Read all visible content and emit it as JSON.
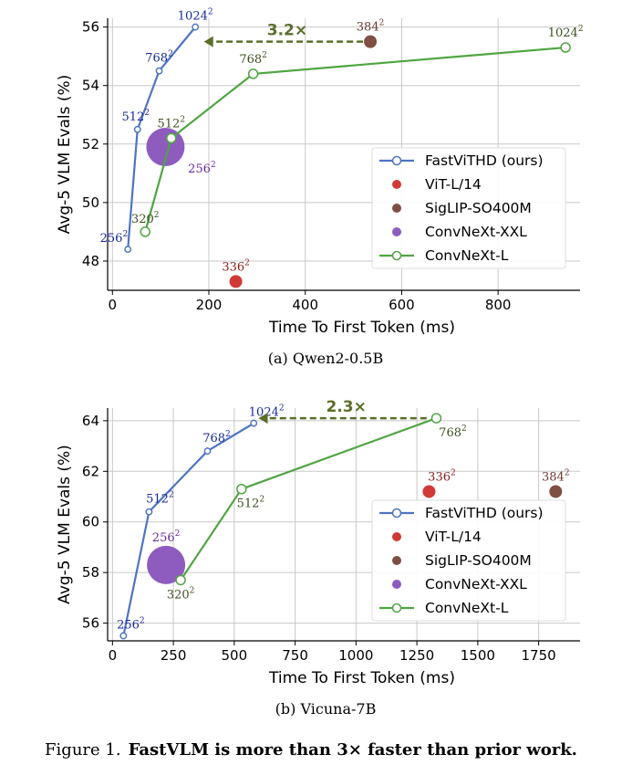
{
  "figure_caption": {
    "prefix": "Figure 1.",
    "bold": "FastVLM is more than 3× faster than prior work."
  },
  "colors": {
    "fastvit": "#4e74c2",
    "vitl": "#d03a36",
    "siglip": "#7f4f44",
    "convnext_xxl": "#8e5bbf",
    "convnext_l": "#4fa542",
    "arrow": "#5a6e2a",
    "label_fastvit": "#1a2a9a",
    "label_convnext_l": "#3b5020",
    "label_vitl": "#8b1a1a",
    "label_siglip": "#6b3a30",
    "label_xxl": "#6a2a9a"
  },
  "legend": {
    "entries": [
      {
        "name": "FastViTHD (ours)",
        "key": "fastvit",
        "kind": "line"
      },
      {
        "name": "ViT-L/14",
        "key": "vitl",
        "kind": "dot"
      },
      {
        "name": "SigLIP-SO400M",
        "key": "siglip",
        "kind": "dot"
      },
      {
        "name": "ConvNeXt-XXL",
        "key": "convnext_xxl",
        "kind": "dot"
      },
      {
        "name": "ConvNeXt-L",
        "key": "convnext_l",
        "kind": "line"
      }
    ],
    "placement": "lower-right"
  },
  "chart_data": [
    {
      "type": "line",
      "subcaption": "(a) Qwen2-0.5B",
      "xlabel": "Time To First Token (ms)",
      "ylabel": "Avg-5 VLM Evals (%)",
      "xlim": [
        -10,
        970
      ],
      "ylim": [
        47.0,
        56.3
      ],
      "xticks": [
        0,
        200,
        400,
        600,
        800
      ],
      "yticks": [
        48,
        50,
        52,
        54,
        56
      ],
      "grid": true,
      "series": [
        {
          "name": "FastViTHD (ours)",
          "key": "fastvit",
          "points": [
            {
              "x": 32,
              "y": 48.4,
              "label": "256",
              "lx": 0,
              "ly": -8,
              "la": "end"
            },
            {
              "x": 52,
              "y": 52.5,
              "label": "512",
              "lx": -2,
              "ly": -10,
              "la": "middle"
            },
            {
              "x": 97,
              "y": 54.5,
              "label": "768",
              "lx": 0,
              "ly": -10,
              "la": "middle"
            },
            {
              "x": 172,
              "y": 56.0,
              "label": "1024",
              "lx": 0,
              "ly": -8,
              "la": "middle"
            }
          ]
        },
        {
          "name": "ConvNeXt-L",
          "key": "convnext_l",
          "points": [
            {
              "x": 68,
              "y": 49.0,
              "label": "320",
              "lx": 0,
              "ly": -10,
              "la": "middle"
            },
            {
              "x": 122,
              "y": 52.2,
              "label": "512",
              "lx": 0,
              "ly": -12,
              "la": "middle"
            },
            {
              "x": 292,
              "y": 54.4,
              "label": "768",
              "lx": 0,
              "ly": -12,
              "la": "middle"
            },
            {
              "x": 940,
              "y": 55.3,
              "label": "1024",
              "lx": 0,
              "ly": -12,
              "la": "middle"
            }
          ]
        }
      ],
      "scatter": [
        {
          "name": "ViT-L/14",
          "key": "vitl",
          "x": 256,
          "y": 47.3,
          "label": "336",
          "lx": 0,
          "ly": -12,
          "size": "small"
        },
        {
          "name": "SigLIP-SO400M",
          "key": "siglip",
          "x": 535,
          "y": 55.5,
          "label": "384",
          "lx": 0,
          "ly": -12,
          "size": "small"
        },
        {
          "name": "ConvNeXt-XXL",
          "key": "convnext_xxl",
          "x": 110,
          "y": 51.9,
          "label": "256",
          "lx": 40,
          "ly": 28,
          "size": "large"
        }
      ],
      "arrow": {
        "from_x": 520,
        "to_x": 190,
        "y": 55.5,
        "label": "3.2×"
      }
    },
    {
      "type": "line",
      "subcaption": "(b) Vicuna-7B",
      "xlabel": "Time To First Token (ms)",
      "ylabel": "Avg-5 VLM Evals (%)",
      "xlim": [
        -20,
        1920
      ],
      "ylim": [
        55.3,
        64.5
      ],
      "xticks": [
        0,
        250,
        500,
        750,
        1000,
        1250,
        1500,
        1750
      ],
      "yticks": [
        56,
        58,
        60,
        62,
        64
      ],
      "grid": true,
      "series": [
        {
          "name": "FastViTHD (ours)",
          "key": "fastvit",
          "points": [
            {
              "x": 45,
              "y": 55.5,
              "label": "256",
              "lx": 8,
              "ly": -8,
              "la": "middle"
            },
            {
              "x": 150,
              "y": 60.4,
              "label": "512",
              "lx": 12,
              "ly": -10,
              "la": "middle"
            },
            {
              "x": 390,
              "y": 62.8,
              "label": "768",
              "lx": 10,
              "ly": -10,
              "la": "middle"
            },
            {
              "x": 580,
              "y": 63.9,
              "label": "1024",
              "lx": 14,
              "ly": -8,
              "la": "middle"
            }
          ]
        },
        {
          "name": "ConvNeXt-L",
          "key": "convnext_l",
          "points": [
            {
              "x": 280,
              "y": 57.7,
              "label": "320",
              "lx": 0,
              "ly": 20,
              "la": "middle"
            },
            {
              "x": 530,
              "y": 61.3,
              "label": "512",
              "lx": 10,
              "ly": 20,
              "la": "middle"
            },
            {
              "x": 1330,
              "y": 64.1,
              "label": "768",
              "lx": 18,
              "ly": 20,
              "la": "middle"
            }
          ]
        }
      ],
      "scatter": [
        {
          "name": "ViT-L/14",
          "key": "vitl",
          "x": 1300,
          "y": 61.2,
          "label": "336",
          "lx": 14,
          "ly": -12,
          "size": "small"
        },
        {
          "name": "SigLIP-SO400M",
          "key": "siglip",
          "x": 1820,
          "y": 61.2,
          "label": "384",
          "lx": 0,
          "ly": -12,
          "size": "small"
        },
        {
          "name": "ConvNeXt-XXL",
          "key": "convnext_xxl",
          "x": 220,
          "y": 58.3,
          "label": "256",
          "lx": 0,
          "ly": -26,
          "size": "large"
        }
      ],
      "arrow": {
        "from_x": 1290,
        "to_x": 600,
        "y": 64.1,
        "label": "2.3×"
      }
    }
  ]
}
